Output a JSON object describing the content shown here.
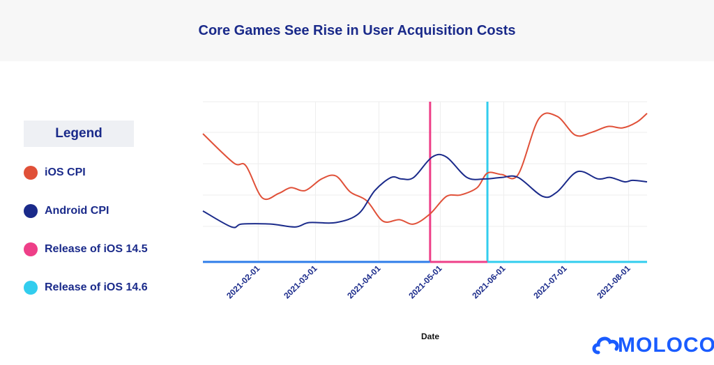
{
  "chart_data": {
    "type": "line",
    "title": "Core Games See Rise in User Acquisition Costs",
    "xlabel": "Date",
    "ylabel": "",
    "x_ticks": [
      "2021-02-01",
      "2021-03-01",
      "2021-04-01",
      "2021-05-01",
      "2021-06-01",
      "2021-07-01",
      "2021-08-01"
    ],
    "x_range": [
      "2021-01-05",
      "2021-08-10"
    ],
    "grid": true,
    "legend_title": "Legend",
    "legend_position": "left",
    "series": [
      {
        "name": "iOS CPI",
        "color": "#e05038",
        "points": [
          [
            "2021-01-05",
            0.88
          ],
          [
            "2021-01-20",
            0.68
          ],
          [
            "2021-01-26",
            0.66
          ],
          [
            "2021-02-03",
            0.44
          ],
          [
            "2021-02-11",
            0.47
          ],
          [
            "2021-02-17",
            0.51
          ],
          [
            "2021-02-24",
            0.49
          ],
          [
            "2021-03-04",
            0.57
          ],
          [
            "2021-03-11",
            0.59
          ],
          [
            "2021-03-18",
            0.48
          ],
          [
            "2021-03-26",
            0.42
          ],
          [
            "2021-04-03",
            0.28
          ],
          [
            "2021-04-11",
            0.29
          ],
          [
            "2021-04-18",
            0.26
          ],
          [
            "2021-04-26",
            0.33
          ],
          [
            "2021-05-04",
            0.45
          ],
          [
            "2021-05-11",
            0.46
          ],
          [
            "2021-05-19",
            0.51
          ],
          [
            "2021-05-24",
            0.61
          ],
          [
            "2021-05-31",
            0.6
          ],
          [
            "2021-06-08",
            0.6
          ],
          [
            "2021-06-18",
            0.98
          ],
          [
            "2021-06-27",
            1.0
          ],
          [
            "2021-07-06",
            0.87
          ],
          [
            "2021-07-14",
            0.89
          ],
          [
            "2021-07-22",
            0.93
          ],
          [
            "2021-07-29",
            0.92
          ],
          [
            "2021-08-05",
            0.96
          ],
          [
            "2021-08-10",
            1.02
          ]
        ]
      },
      {
        "name": "Android CPI",
        "color": "#1a2a8a",
        "points": [
          [
            "2021-01-05",
            0.35
          ],
          [
            "2021-01-19",
            0.24
          ],
          [
            "2021-01-24",
            0.26
          ],
          [
            "2021-02-07",
            0.26
          ],
          [
            "2021-02-19",
            0.24
          ],
          [
            "2021-02-26",
            0.27
          ],
          [
            "2021-03-11",
            0.27
          ],
          [
            "2021-03-22",
            0.33
          ],
          [
            "2021-03-30",
            0.49
          ],
          [
            "2021-04-07",
            0.58
          ],
          [
            "2021-04-12",
            0.57
          ],
          [
            "2021-04-18",
            0.58
          ],
          [
            "2021-04-27",
            0.72
          ],
          [
            "2021-05-04",
            0.72
          ],
          [
            "2021-05-14",
            0.58
          ],
          [
            "2021-05-23",
            0.57
          ],
          [
            "2021-05-31",
            0.58
          ],
          [
            "2021-06-08",
            0.58
          ],
          [
            "2021-06-20",
            0.45
          ],
          [
            "2021-06-27",
            0.48
          ],
          [
            "2021-07-07",
            0.62
          ],
          [
            "2021-07-17",
            0.57
          ],
          [
            "2021-07-23",
            0.58
          ],
          [
            "2021-07-30",
            0.55
          ],
          [
            "2021-08-03",
            0.56
          ],
          [
            "2021-08-10",
            0.55
          ]
        ]
      },
      {
        "name": "Release of iOS 14.5",
        "color": "#ee3f88",
        "date": "2021-04-26"
      },
      {
        "name": "Release of iOS 14.6",
        "color": "#32cdee",
        "date": "2021-05-24"
      }
    ]
  },
  "legend": {
    "title": "Legend",
    "items": [
      {
        "label": "iOS CPI",
        "color": "#e05038"
      },
      {
        "label": "Android CPI",
        "color": "#1a2a8a"
      },
      {
        "label": "Release of iOS 14.5",
        "color": "#ee3f88"
      },
      {
        "label": "Release of iOS 14.6",
        "color": "#32cdee"
      }
    ]
  },
  "baseline_colors": [
    "#2f7de9",
    "#ee3f88",
    "#32cdee"
  ],
  "logo": {
    "text": "MOLOCO",
    "color": "#1a5cff",
    "icon": "cloud-icon"
  }
}
